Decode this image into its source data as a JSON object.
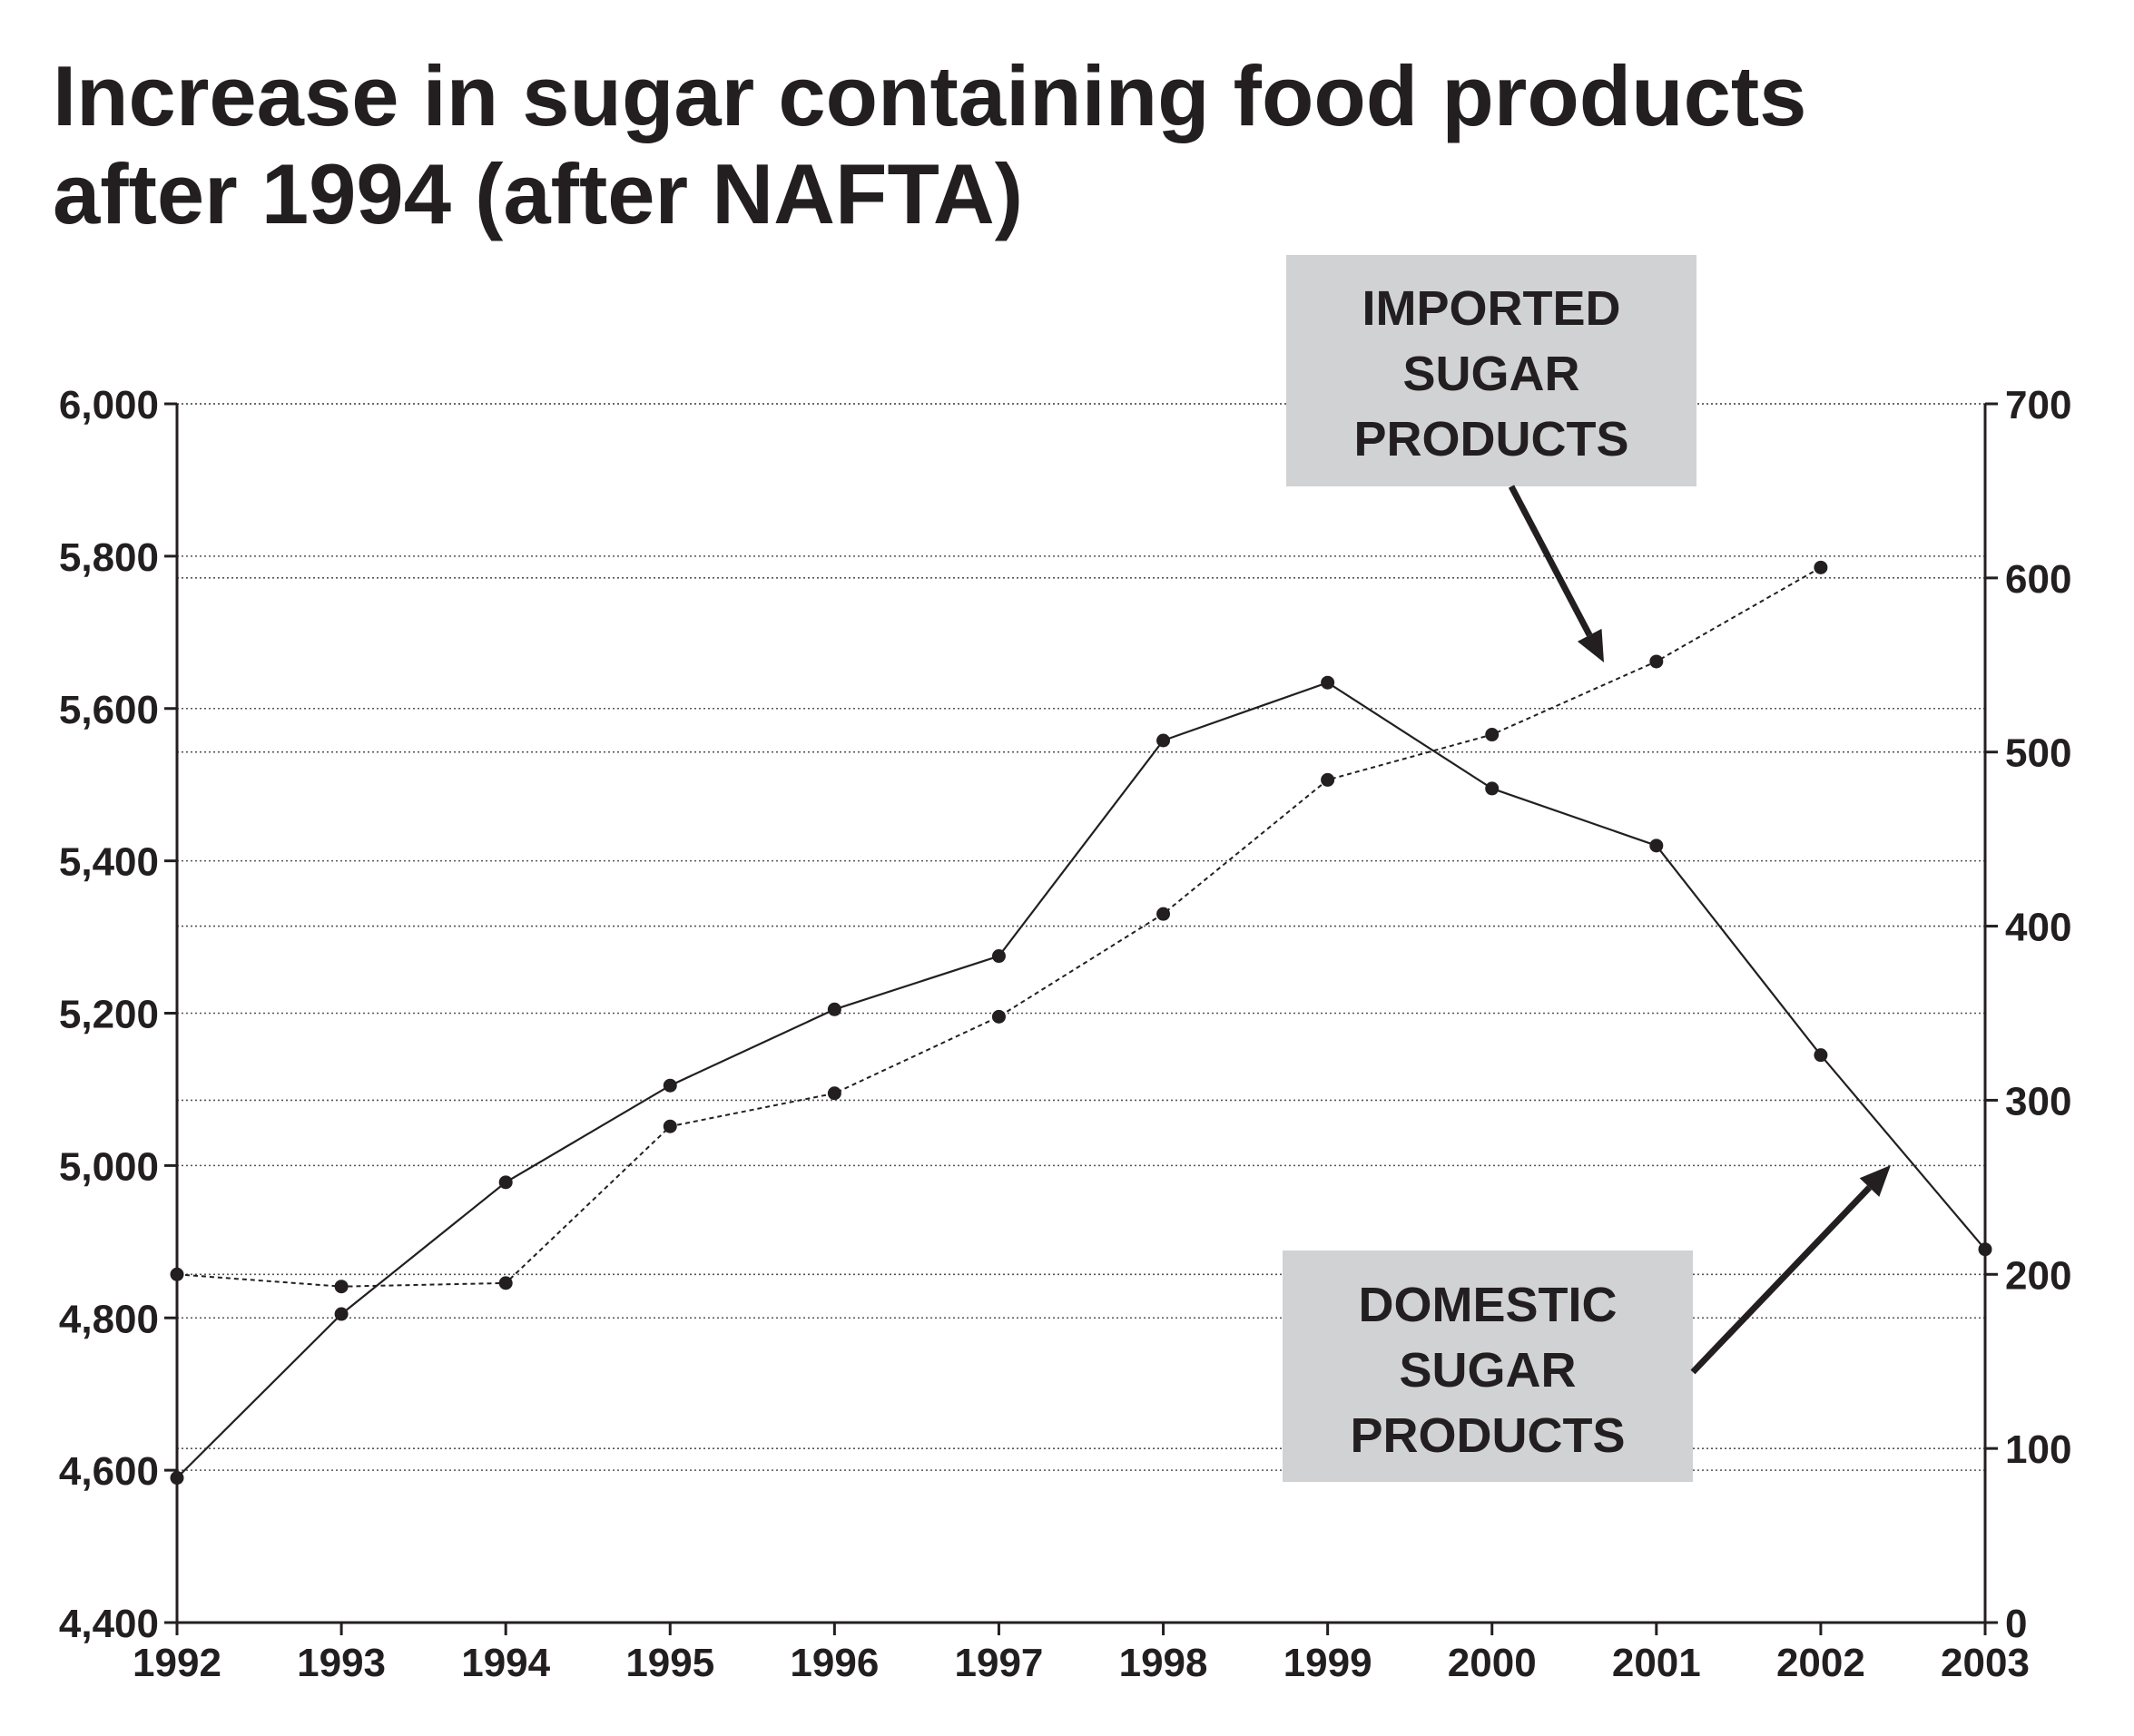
{
  "title": {
    "line1": "Increase in sugar containing food products",
    "line2": "after 1994 (after NAFTA)"
  },
  "colors": {
    "ink": "#231f20",
    "grid": "#555555",
    "label_box": "#d1d2d3"
  },
  "chart_data": {
    "type": "line",
    "categories": [
      "1992",
      "1993",
      "1994",
      "1995",
      "1996",
      "1997",
      "1998",
      "1999",
      "2000",
      "2001",
      "2002",
      "2003"
    ],
    "y_left": {
      "ylim": [
        4400,
        6000
      ],
      "ticks": [
        "4,400",
        "4,600",
        "4,800",
        "5,000",
        "5,200",
        "5,400",
        "5,600",
        "5,800",
        "6,000"
      ]
    },
    "y_right": {
      "ylim": [
        0,
        700
      ],
      "ticks": [
        "0",
        "100",
        "200",
        "300",
        "400",
        "500",
        "600",
        "700"
      ]
    },
    "series": [
      {
        "name": "DOMESTIC SUGAR PRODUCTS",
        "axis": "left",
        "style": "solid",
        "values": [
          4590,
          4805,
          4978,
          5105,
          5205,
          5275,
          5558,
          5634,
          5495,
          5420,
          5145,
          4890
        ]
      },
      {
        "name": "IMPORTED SUGAR PRODUCTS",
        "axis": "right",
        "style": "dotted",
        "values": [
          200,
          193,
          195,
          285,
          304,
          348,
          407,
          484,
          510,
          552,
          606,
          null
        ]
      }
    ],
    "annotations": {
      "imported": [
        "IMPORTED",
        "SUGAR",
        "PRODUCTS"
      ],
      "domestic": [
        "DOMESTIC",
        "SUGAR",
        "PRODUCTS"
      ]
    },
    "grid": true
  }
}
